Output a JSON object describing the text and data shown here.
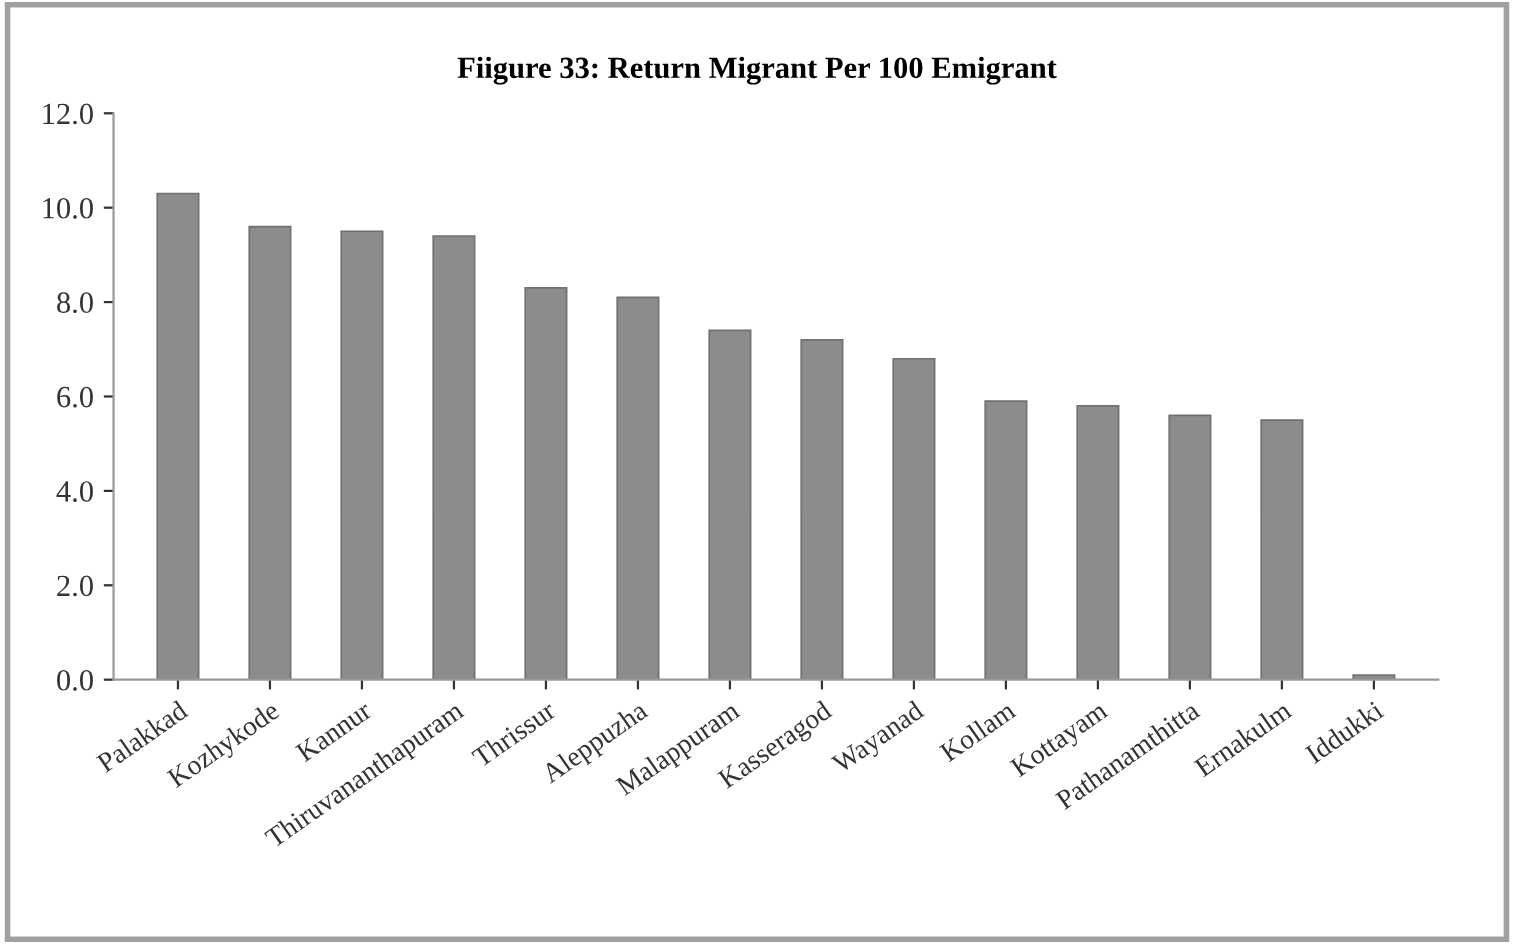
{
  "chart_data": {
    "type": "bar",
    "title": "Fiigure 33: Return Migrant Per 100 Emigrant",
    "categories": [
      "Palakkad",
      "Kozhykode",
      "Kannur",
      "Thiruvananthapuram",
      "Thrissur",
      "Aleppuzha",
      "Malappuram",
      "Kasseragod",
      "Wayanad",
      "Kollam",
      "Kottayam",
      "Pathanamthitta",
      "Ernakulm",
      "Iddukki"
    ],
    "values": [
      10.3,
      9.6,
      9.5,
      9.4,
      8.3,
      8.1,
      7.4,
      7.2,
      6.8,
      5.9,
      5.8,
      5.6,
      5.5,
      0.1
    ],
    "color": "#8c8c8c",
    "ylim": [
      0,
      12
    ],
    "yticks": [
      {
        "value": 0,
        "label": "0.0"
      },
      {
        "value": 2,
        "label": "2.0"
      },
      {
        "value": 4,
        "label": "4.0"
      },
      {
        "value": 6,
        "label": "6.0"
      },
      {
        "value": 8,
        "label": "8.0"
      },
      {
        "value": 10,
        "label": "10.0"
      },
      {
        "value": 12,
        "label": "12.0"
      }
    ],
    "grid": false,
    "legend": false
  }
}
